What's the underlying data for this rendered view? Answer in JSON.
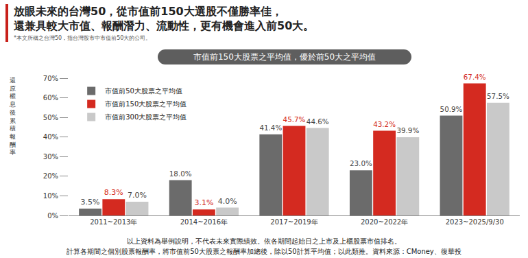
{
  "chart_data": {
    "type": "bar",
    "title": [
      "放眼未來的台灣50，從市值前150大選股不僅勝率佳，",
      "還兼具較大市值、報酬潛力、流動性，更有機會進入前50大。"
    ],
    "title_note": "*本文所稱之台灣50，指台灣股市中市值前50大的公司。",
    "subtitle": "市值前150大股票之平均值，優於前50大之平均值",
    "y_label": "還原權息後累積報酬率",
    "footnotes": [
      "以上資料為舉例說明，不代表未來實際績效。依各期間起始日之上市及上櫃股票市值排名。",
      "計算各期間之個別股票報酬率，將市值前50大股票之報酬率加總後，除以50計算平均值；以此類推。資料來源：CMoney、復華投"
    ],
    "categories": [
      "2011~2013年",
      "2014~2016年",
      "2017~2019年",
      "2020~2022年",
      "2023~2025/9/30"
    ],
    "series": [
      {
        "name": "市值前50大股票之平均值",
        "color": "#6b6b6b",
        "values": [
          3.5,
          18.0,
          41.4,
          23.0,
          50.9
        ],
        "value_labels": [
          "3.5%",
          "18.0%",
          "41.4%",
          "23.0%",
          "50.9%"
        ]
      },
      {
        "name": "市值前150大股票之平均值",
        "color": "#d42a20",
        "values": [
          8.3,
          3.1,
          45.7,
          43.2,
          67.4
        ],
        "value_labels": [
          "8.3%",
          "3.1%",
          "45.7%",
          "43.2%",
          "67.4%"
        ]
      },
      {
        "name": "市值前300大股票之平均值",
        "color": "#c9c9c9",
        "values": [
          7.0,
          4.0,
          44.6,
          39.9,
          57.5
        ],
        "value_labels": [
          "7.0%",
          "4.0%",
          "44.6%",
          "39.9%",
          "57.5%"
        ]
      }
    ],
    "ylim": [
      0,
      70
    ],
    "yticks": [
      {
        "value": 0,
        "label": "0%"
      },
      {
        "value": 10,
        "label": "10%"
      },
      {
        "value": 20,
        "label": "20%"
      },
      {
        "value": 30,
        "label": "30%"
      },
      {
        "value": 40,
        "label": "40%"
      },
      {
        "value": 50,
        "label": "50%"
      },
      {
        "value": 60,
        "label": "60%"
      },
      {
        "value": 70,
        "label": "70%"
      }
    ],
    "grid": false,
    "legend": "top-left",
    "data_labels": true
  }
}
